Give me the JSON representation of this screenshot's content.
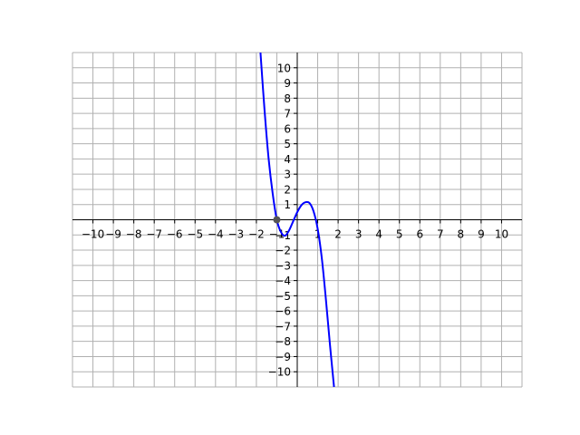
{
  "chart_data": {
    "type": "line",
    "title": "",
    "xlabel": "",
    "ylabel": "",
    "xlim": [
      -11,
      11
    ],
    "ylim": [
      -11,
      11
    ],
    "grid": true,
    "x_ticks": [
      -10,
      -9,
      -8,
      -7,
      -6,
      -5,
      -4,
      -3,
      -2,
      -1,
      1,
      2,
      3,
      4,
      5,
      6,
      7,
      8,
      9,
      10
    ],
    "y_ticks": [
      -10,
      -9,
      -8,
      -7,
      -6,
      -5,
      -4,
      -3,
      -2,
      -1,
      1,
      2,
      3,
      4,
      5,
      6,
      7,
      8,
      9,
      10
    ],
    "series": [
      {
        "color": "#0000ff",
        "points": [
          [
            -1.8,
            11.0
          ],
          [
            -1.6,
            7.2
          ],
          [
            -1.4,
            4.0
          ],
          [
            -1.2,
            1.7
          ],
          [
            -1.0,
            0.0
          ],
          [
            -0.8,
            -0.8
          ],
          [
            -0.6,
            -1.05
          ],
          [
            -0.4,
            -0.7
          ],
          [
            -0.2,
            -0.1
          ],
          [
            0.0,
            0.5
          ],
          [
            0.2,
            0.95
          ],
          [
            0.4,
            1.15
          ],
          [
            0.6,
            1.1
          ],
          [
            0.8,
            0.55
          ],
          [
            1.0,
            -0.6
          ],
          [
            1.2,
            -2.5
          ],
          [
            1.4,
            -5.2
          ],
          [
            1.6,
            -8.2
          ],
          [
            1.8,
            -11.0
          ]
        ]
      }
    ],
    "highlighted_points": [
      {
        "x": -1,
        "y": 0,
        "color": "#555555"
      }
    ]
  }
}
